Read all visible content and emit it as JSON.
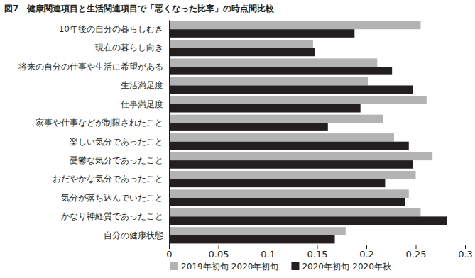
{
  "chart_data": {
    "type": "bar",
    "orientation": "horizontal",
    "title": "図7　健康関連項目と生活関連項目で「悪くなった比率」の時点間比較",
    "categories": [
      "10年後の自分の暮らしむき",
      "現在の暮らし向き",
      "将来の自分の仕事や生活に希望がある",
      "生活満足度",
      "仕事満足度",
      "家事や仕事などが制限されたこと",
      "楽しい気分であったこと",
      "憂鬱な気分であったこと",
      "おだやかな気分であったこと",
      "気分が落ち込んでいたこと",
      "かなり神経質であったこと",
      "自分の健康状態"
    ],
    "series": [
      {
        "name": "2019年初旬-2020年初旬",
        "color": "#b3b3b3",
        "values": [
          0.255,
          0.146,
          0.211,
          0.202,
          0.261,
          0.217,
          0.228,
          0.267,
          0.25,
          0.243,
          0.255,
          0.179
        ]
      },
      {
        "name": "2020年初旬-2020年秋",
        "color": "#231f20",
        "values": [
          0.188,
          0.148,
          0.226,
          0.247,
          0.194,
          0.161,
          0.243,
          0.247,
          0.219,
          0.239,
          0.282,
          0.168
        ]
      }
    ],
    "xlim": [
      0,
      0.3
    ],
    "xticks": [
      0,
      0.05,
      0.1,
      0.15,
      0.2,
      0.25,
      0.3
    ],
    "grid": false,
    "legend": "bottom"
  }
}
